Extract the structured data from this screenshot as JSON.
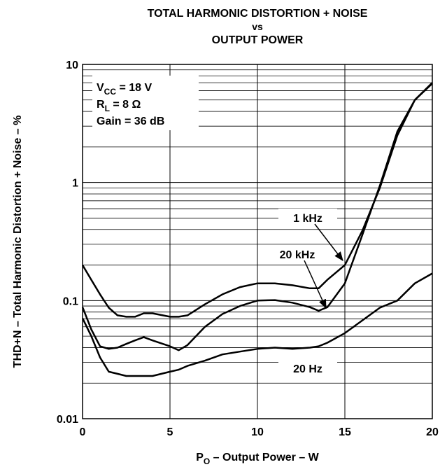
{
  "chart_data": {
    "type": "line",
    "title_lines": [
      "TOTAL HARMONIC DISTORTION + NOISE",
      "vs",
      "OUTPUT POWER"
    ],
    "xlabel": {
      "main": "P",
      "sub": "O",
      "rest": " – Output Power – W"
    },
    "ylabel": "THD+N – Total Harmonic Distortion + Noise – %",
    "annotations": [
      {
        "main": "V",
        "sub": "CC",
        "rest": " = 18 V"
      },
      {
        "main": "R",
        "sub": "L",
        "rest": " = 8 Ω"
      },
      {
        "main": "Gain = 36 dB"
      }
    ],
    "x": [
      0,
      0.5,
      1,
      1.5,
      2,
      2.5,
      3,
      3.5,
      4,
      5,
      5.5,
      6,
      7,
      8,
      9,
      10,
      11,
      12,
      13,
      13.5,
      14,
      15,
      16,
      17,
      18,
      19,
      20
    ],
    "series": [
      {
        "name": "1 kHz",
        "color": "#000000",
        "values": [
          0.2,
          0.15,
          0.113,
          0.087,
          0.075,
          0.073,
          0.073,
          0.078,
          0.078,
          0.073,
          0.073,
          0.075,
          0.093,
          0.113,
          0.13,
          0.14,
          0.14,
          0.135,
          0.127,
          0.127,
          0.15,
          0.2,
          0.39,
          0.9,
          2.5,
          5,
          6.9
        ]
      },
      {
        "name": "20 kHz",
        "color": "#000000",
        "values": [
          0.088,
          0.057,
          0.041,
          0.039,
          0.04,
          0.043,
          0.046,
          0.049,
          0.046,
          0.041,
          0.038,
          0.042,
          0.06,
          0.077,
          0.09,
          0.1,
          0.101,
          0.096,
          0.088,
          0.082,
          0.088,
          0.14,
          0.36,
          0.94,
          2.7,
          5,
          7
        ]
      },
      {
        "name": "20 Hz",
        "color": "#000000",
        "values": [
          0.071,
          0.05,
          0.033,
          0.025,
          0.024,
          0.023,
          0.023,
          0.023,
          0.023,
          0.025,
          0.026,
          0.028,
          0.031,
          0.035,
          0.037,
          0.039,
          0.04,
          0.039,
          0.04,
          0.041,
          0.044,
          0.053,
          0.068,
          0.087,
          0.1,
          0.14,
          0.17
        ]
      }
    ],
    "xlim": [
      0,
      20
    ],
    "xticks": [
      0,
      5,
      10,
      15,
      20
    ],
    "ylim": [
      0.01,
      10
    ],
    "yticks": [
      0.01,
      0.1,
      1,
      10
    ],
    "yminorticks": [
      0.02,
      0.03,
      0.04,
      0.05,
      0.06,
      0.07,
      0.08,
      0.09,
      0.2,
      0.3,
      0.4,
      0.5,
      0.6,
      0.7,
      0.8,
      0.9,
      2,
      3,
      4,
      5,
      6,
      7,
      8,
      9
    ],
    "ylog": true,
    "grid": true
  }
}
